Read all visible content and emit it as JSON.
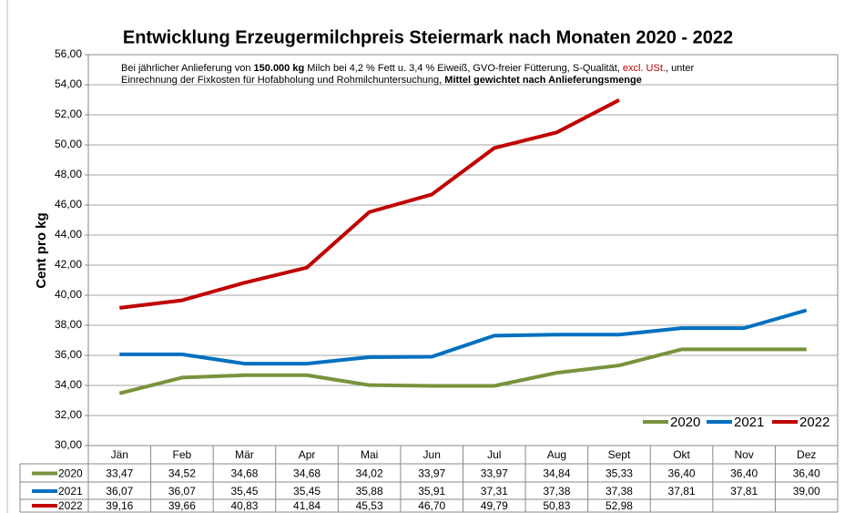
{
  "chart_data": {
    "type": "line",
    "title": "Entwicklung  Erzeugermilchpreis  Steiermark  nach  Monaten  2020 - 2022",
    "note": [
      [
        {
          "text": "Bei jährlicher Anlieferung von ",
          "style": "normal"
        },
        {
          "text": "150.000 kg",
          "style": "bold"
        },
        {
          "text": " Milch bei 4,2 % Fett u. 3,4 % Eiweiß, GVO-freier Fütterung, S-Qualität, ",
          "style": "normal"
        },
        {
          "text": "excl. USt.",
          "style": "red"
        },
        {
          "text": ", unter",
          "style": "normal"
        }
      ],
      [
        {
          "text": "Einrechnung der Fixkosten für Hofabholung und Rohmilchuntersuchung, ",
          "style": "normal"
        },
        {
          "text": "Mittel gewichtet nach Anlieferungsmenge",
          "style": "bold"
        }
      ]
    ],
    "y_label": "Cent pro kg",
    "categories": [
      "Jän",
      "Feb",
      "Mär",
      "Apr",
      "Mai",
      "Jun",
      "Jul",
      "Aug",
      "Sept",
      "Okt",
      "Nov",
      "Dez"
    ],
    "series": [
      {
        "name": "2020",
        "color": "#77933c",
        "values": [
          33.47,
          34.52,
          34.68,
          34.68,
          34.02,
          33.97,
          33.97,
          34.84,
          35.33,
          36.4,
          36.4,
          36.4
        ],
        "value_labels": [
          "33,47",
          "34,52",
          "34,68",
          "34,68",
          "34,02",
          "33,97",
          "33,97",
          "34,84",
          "35,33",
          "36,40",
          "36,40",
          "36,40"
        ]
      },
      {
        "name": "2021",
        "color": "#0070c0",
        "values": [
          36.07,
          36.07,
          35.45,
          35.45,
          35.88,
          35.91,
          37.31,
          37.38,
          37.38,
          37.81,
          37.81,
          39.0
        ],
        "value_labels": [
          "36,07",
          "36,07",
          "35,45",
          "35,45",
          "35,88",
          "35,91",
          "37,31",
          "37,38",
          "37,38",
          "37,81",
          "37,81",
          "39,00"
        ]
      },
      {
        "name": "2022",
        "color": "#c00000",
        "values": [
          39.16,
          39.66,
          40.83,
          41.84,
          45.53,
          46.7,
          49.79,
          50.83,
          52.98,
          null,
          null,
          null
        ],
        "value_labels": [
          "39,16",
          "39,66",
          "40,83",
          "41,84",
          "45,53",
          "46,70",
          "49,79",
          "50,83",
          "52,98",
          null,
          null,
          null
        ]
      }
    ],
    "ylim": [
      30,
      56
    ],
    "yticks": [
      {
        "value": 30,
        "label": "30,00"
      },
      {
        "value": 32,
        "label": "32,00"
      },
      {
        "value": 34,
        "label": "34,00"
      },
      {
        "value": 36,
        "label": "36,00"
      },
      {
        "value": 38,
        "label": "38,00"
      },
      {
        "value": 40,
        "label": "40,00"
      },
      {
        "value": 42,
        "label": "42,00"
      },
      {
        "value": 44,
        "label": "44,00"
      },
      {
        "value": 46,
        "label": "46,00"
      },
      {
        "value": 48,
        "label": "48,00"
      },
      {
        "value": 50,
        "label": "50,00"
      },
      {
        "value": 52,
        "label": "52,00"
      },
      {
        "value": 54,
        "label": "54,00"
      },
      {
        "value": 56,
        "label": "56,00"
      }
    ],
    "grid": true,
    "legend": "lower right"
  }
}
